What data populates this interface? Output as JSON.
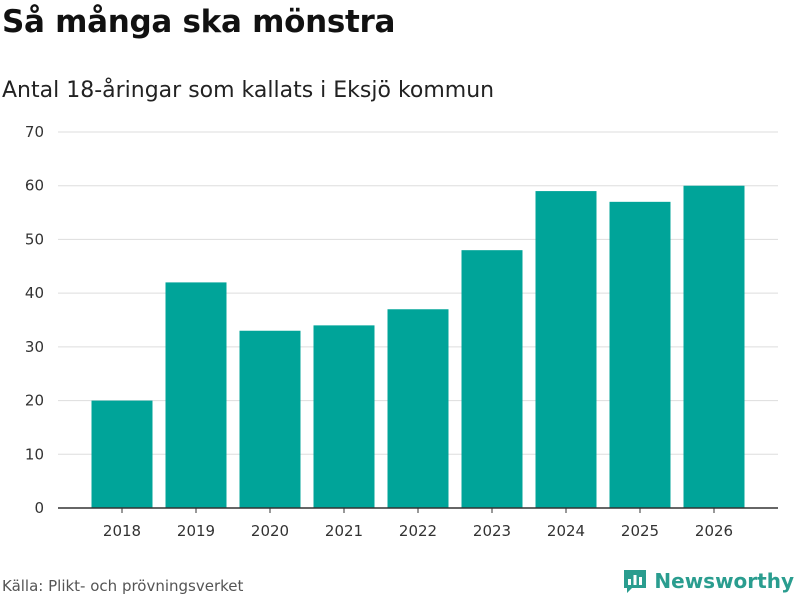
{
  "header": {
    "title": "Så många ska mönstra",
    "subtitle": "Antal 18-åringar som kallats i Eksjö kommun"
  },
  "footer": {
    "source": "Källa: Plikt- och prövningsverket",
    "brand": "Newsworthy",
    "brand_icon": "bar-chart-speech-bubble-icon"
  },
  "colors": {
    "bar": "#00a499",
    "grid": "#dddddd",
    "axis": "#333333",
    "brand": "#2a9d8f"
  },
  "chart_data": {
    "type": "bar",
    "title": "Så många ska mönstra",
    "subtitle": "Antal 18-åringar som kallats i Eksjö kommun",
    "xlabel": "",
    "ylabel": "",
    "categories": [
      "2018",
      "2019",
      "2020",
      "2021",
      "2022",
      "2023",
      "2024",
      "2025",
      "2026"
    ],
    "values": [
      20,
      42,
      33,
      34,
      37,
      48,
      59,
      57,
      60
    ],
    "ylim": [
      0,
      70
    ],
    "yticks": [
      0,
      10,
      20,
      30,
      40,
      50,
      60,
      70
    ],
    "grid": true,
    "legend": "none"
  }
}
